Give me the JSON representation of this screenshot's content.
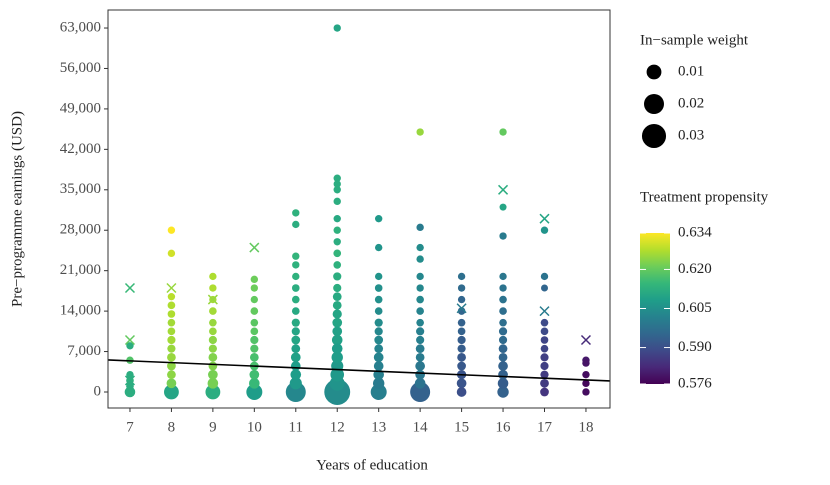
{
  "chart_data": {
    "type": "scatter",
    "x_label": "Years of education",
    "y_label": "Pre−programme earnings (USD)",
    "xlim": [
      6.47,
      18.58
    ],
    "xticks": [
      7,
      8,
      9,
      10,
      11,
      12,
      13,
      14,
      15,
      16,
      17,
      18
    ],
    "ylim": [
      -2770,
      66120
    ],
    "yticks": [
      0,
      {
        "value": 7000,
        "label": "7,000"
      },
      {
        "value": 14000,
        "label": "14,000"
      },
      {
        "value": 21000,
        "label": "21,000"
      },
      {
        "value": 28000,
        "label": "28,000"
      },
      {
        "value": 35000,
        "label": "35,000"
      },
      {
        "value": 42000,
        "label": "42,000"
      },
      {
        "value": 49000,
        "label": "49,000"
      },
      {
        "value": 56000,
        "label": "56,000"
      },
      {
        "value": 63000,
        "label": "63,000"
      }
    ],
    "grid": false,
    "colormap": "viridis",
    "size_legend": {
      "title": "In−sample weight",
      "values": [
        0.01,
        0.02,
        0.03
      ]
    },
    "color_legend": {
      "title": "Treatment propensity",
      "lim": [
        0.576,
        0.634
      ],
      "ticks": [
        0.576,
        {
          "value": 0.59,
          "label": "0.590"
        },
        0.605,
        {
          "value": 0.62,
          "label": "0.620"
        },
        0.634
      ]
    },
    "fit_line": {
      "color": "#000000",
      "x": [
        6.47,
        18.58
      ],
      "y": [
        5545,
        1906
      ]
    },
    "columns": [
      {
        "x": 7,
        "y": [
          0,
          1000,
          2000,
          3000,
          5500,
          8000
        ],
        "weight": [
          0.004,
          0.001,
          0.001,
          0.0008,
          0.0008,
          0.0008
        ],
        "propensity": [
          0.612,
          0.612,
          0.613,
          0.612,
          0.618,
          0.612
        ],
        "cross_y": [
          18000,
          9000,
          2000
        ],
        "cross_propensity": [
          0.615,
          0.62,
          0.612
        ]
      },
      {
        "x": 8,
        "y": [
          0,
          1500,
          3000,
          4500,
          6000,
          7500,
          9000,
          10500,
          12000,
          13500,
          15000,
          16500,
          24000,
          28000
        ],
        "weight": [
          0.01,
          0.003,
          0.002,
          0.002,
          0.002,
          0.0015,
          0.0015,
          0.001,
          0.001,
          0.001,
          0.001,
          0.0008,
          0.0008,
          0.0008
        ],
        "propensity": [
          0.61,
          0.622,
          0.624,
          0.624,
          0.625,
          0.625,
          0.626,
          0.626,
          0.626,
          0.627,
          0.627,
          0.628,
          0.63,
          0.634
        ],
        "cross_y": [
          18000
        ],
        "cross_propensity": [
          0.625
        ]
      },
      {
        "x": 9,
        "y": [
          0,
          1500,
          3000,
          4500,
          6000,
          7500,
          9000,
          10500,
          12000,
          14000,
          16000,
          18000,
          20000
        ],
        "weight": [
          0.01,
          0.004,
          0.003,
          0.002,
          0.002,
          0.0015,
          0.0015,
          0.001,
          0.001,
          0.001,
          0.0008,
          0.0008,
          0.0008
        ],
        "propensity": [
          0.612,
          0.622,
          0.622,
          0.623,
          0.623,
          0.624,
          0.624,
          0.625,
          0.625,
          0.626,
          0.626,
          0.627,
          0.627
        ],
        "cross_y": [
          16000
        ],
        "cross_propensity": [
          0.625
        ]
      },
      {
        "x": 10,
        "y": [
          0,
          1500,
          3000,
          4500,
          6000,
          7500,
          9000,
          10500,
          12000,
          14000,
          16000,
          18000,
          19500
        ],
        "weight": [
          0.012,
          0.004,
          0.003,
          0.002,
          0.002,
          0.0015,
          0.0015,
          0.001,
          0.001,
          0.001,
          0.0008,
          0.0008,
          0.0008
        ],
        "propensity": [
          0.608,
          0.615,
          0.616,
          0.617,
          0.617,
          0.618,
          0.618,
          0.619,
          0.619,
          0.62,
          0.62,
          0.621,
          0.621
        ],
        "cross_y": [
          25000
        ],
        "cross_propensity": [
          0.62
        ]
      },
      {
        "x": 11,
        "y": [
          0,
          1500,
          3000,
          4500,
          6000,
          7500,
          9000,
          10500,
          12000,
          14000,
          16000,
          18000,
          20000,
          22000,
          23500,
          29000,
          31000
        ],
        "weight": [
          0.02,
          0.006,
          0.004,
          0.003,
          0.003,
          0.002,
          0.002,
          0.0015,
          0.0015,
          0.001,
          0.001,
          0.001,
          0.0008,
          0.0008,
          0.0008,
          0.0008,
          0.0008
        ],
        "propensity": [
          0.603,
          0.607,
          0.608,
          0.608,
          0.609,
          0.609,
          0.61,
          0.61,
          0.611,
          0.611,
          0.612,
          0.612,
          0.613,
          0.613,
          0.614,
          0.612,
          0.613
        ]
      },
      {
        "x": 12,
        "y": [
          0,
          1500,
          3000,
          4500,
          6000,
          7500,
          9000,
          10500,
          12000,
          13500,
          15000,
          16500,
          18000,
          20000,
          22000,
          24000,
          26000,
          28000,
          30000,
          33000,
          35000,
          36000,
          37000,
          63000
        ],
        "weight": [
          0.035,
          0.01,
          0.008,
          0.006,
          0.005,
          0.004,
          0.004,
          0.003,
          0.003,
          0.0025,
          0.002,
          0.002,
          0.0015,
          0.0015,
          0.001,
          0.001,
          0.0008,
          0.0008,
          0.0008,
          0.0008,
          0.0008,
          0.0008,
          0.0008,
          0.0008
        ],
        "propensity": [
          0.604,
          0.606,
          0.607,
          0.607,
          0.608,
          0.608,
          0.609,
          0.609,
          0.61,
          0.61,
          0.611,
          0.611,
          0.612,
          0.612,
          0.613,
          0.614,
          0.612,
          0.613,
          0.611,
          0.612,
          0.612,
          0.612,
          0.612,
          0.61
        ]
      },
      {
        "x": 13,
        "y": [
          0,
          1500,
          3000,
          4500,
          6000,
          7500,
          9000,
          10500,
          12000,
          14000,
          16000,
          18000,
          20000,
          25000,
          30000
        ],
        "weight": [
          0.012,
          0.005,
          0.004,
          0.003,
          0.003,
          0.002,
          0.002,
          0.0015,
          0.0015,
          0.001,
          0.001,
          0.001,
          0.0008,
          0.0008,
          0.0008
        ],
        "propensity": [
          0.601,
          0.6,
          0.601,
          0.601,
          0.602,
          0.602,
          0.603,
          0.603,
          0.604,
          0.604,
          0.605,
          0.605,
          0.606,
          0.606,
          0.607
        ]
      },
      {
        "x": 14,
        "y": [
          0,
          1500,
          3000,
          4500,
          6000,
          7500,
          9000,
          10500,
          12000,
          14000,
          16000,
          18000,
          20000,
          23000,
          25000,
          28500,
          45000
        ],
        "weight": [
          0.02,
          0.004,
          0.003,
          0.003,
          0.002,
          0.002,
          0.0015,
          0.0015,
          0.001,
          0.001,
          0.001,
          0.0008,
          0.0008,
          0.0008,
          0.0008,
          0.0008,
          0.0008
        ],
        "propensity": [
          0.594,
          0.598,
          0.599,
          0.599,
          0.6,
          0.6,
          0.601,
          0.601,
          0.602,
          0.602,
          0.603,
          0.603,
          0.603,
          0.604,
          0.604,
          0.6,
          0.625
        ]
      },
      {
        "x": 15,
        "y": [
          0,
          1500,
          3000,
          4500,
          6000,
          7500,
          9000,
          10500,
          12000,
          14000,
          16000,
          18000,
          20000
        ],
        "weight": [
          0.003,
          0.003,
          0.0025,
          0.002,
          0.002,
          0.0015,
          0.0015,
          0.001,
          0.001,
          0.001,
          0.0008,
          0.0008,
          0.0008
        ],
        "propensity": [
          0.59,
          0.591,
          0.591,
          0.592,
          0.592,
          0.593,
          0.593,
          0.594,
          0.594,
          0.595,
          0.595,
          0.596,
          0.597
        ],
        "cross_y": [
          14500
        ],
        "cross_propensity": [
          0.6
        ]
      },
      {
        "x": 16,
        "y": [
          0,
          1500,
          3000,
          4500,
          6000,
          7500,
          9000,
          10500,
          12000,
          14000,
          16000,
          18000,
          20000,
          27000,
          32000,
          45000
        ],
        "weight": [
          0.005,
          0.004,
          0.003,
          0.003,
          0.002,
          0.002,
          0.0015,
          0.0015,
          0.001,
          0.001,
          0.001,
          0.0008,
          0.0008,
          0.0008,
          0.0005,
          0.0008
        ],
        "propensity": [
          0.594,
          0.593,
          0.594,
          0.594,
          0.595,
          0.595,
          0.596,
          0.596,
          0.597,
          0.597,
          0.598,
          0.598,
          0.599,
          0.6,
          0.61,
          0.62
        ],
        "cross_y": [
          35000
        ],
        "cross_propensity": [
          0.612
        ]
      },
      {
        "x": 17,
        "y": [
          0,
          1500,
          3000,
          4500,
          6000,
          7500,
          9000,
          10500,
          12000,
          18000,
          20000,
          28000
        ],
        "weight": [
          0.002,
          0.002,
          0.0015,
          0.0015,
          0.0015,
          0.001,
          0.001,
          0.001,
          0.001,
          0.0005,
          0.0008,
          0.0008
        ],
        "propensity": [
          0.585,
          0.586,
          0.586,
          0.587,
          0.587,
          0.588,
          0.588,
          0.589,
          0.589,
          0.595,
          0.598,
          0.606
        ],
        "cross_y": [
          30000,
          14000
        ],
        "cross_propensity": [
          0.61,
          0.6
        ]
      },
      {
        "x": 18,
        "y": [
          0,
          1500,
          3000,
          5000,
          5500
        ],
        "weight": [
          0.0008,
          0.0008,
          0.0008,
          0.0008,
          0.0008
        ],
        "propensity": [
          0.578,
          0.577,
          0.578,
          0.579,
          0.58
        ],
        "cross_y": [
          9000
        ],
        "cross_propensity": [
          0.583
        ]
      }
    ]
  }
}
